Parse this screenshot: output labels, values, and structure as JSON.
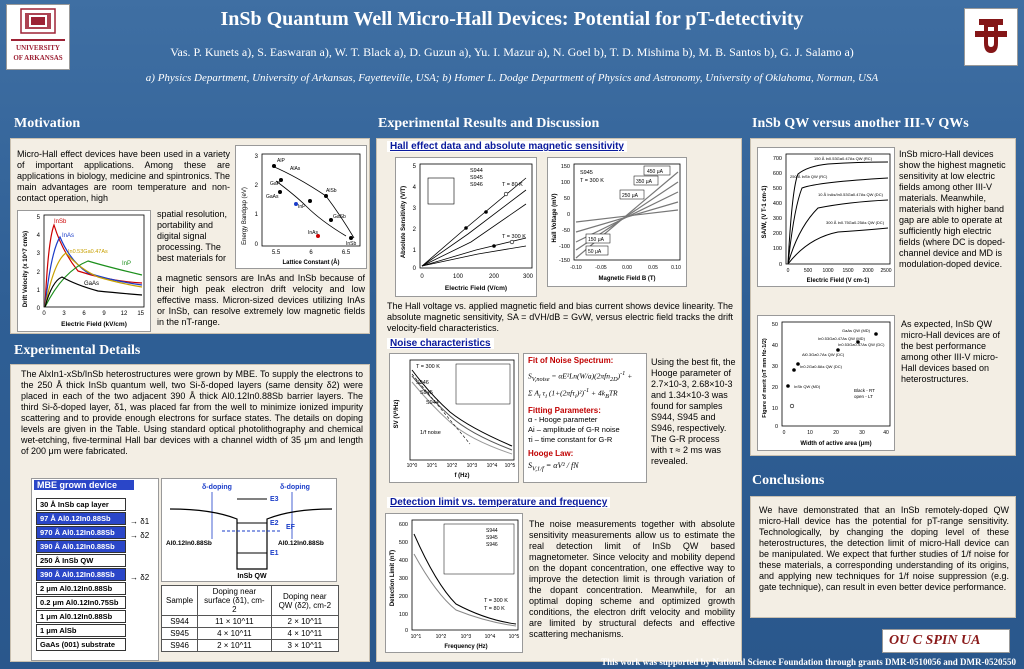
{
  "header": {
    "title": "InSb Quantum Well Micro-Hall Devices: Potential for pT-detectivity",
    "authors": "Vas. P. Kunets a), S. Easwaran a), W. T. Black a), D. Guzun a), Yu. I. Mazur a), N. Goel b), T. D. Mishima b), M. B. Santos b), G. J. Salamo a)",
    "affiliations": "a) Physics Department, University of Arkansas, Fayetteville, USA;   b) Homer L. Dodge Department of Physics and Astronomy, University of Oklahoma, Norman, USA",
    "left_logo_text": "UNIVERSITY OF ARKANSAS",
    "right_logo_text": "OU"
  },
  "motivation": {
    "title": "Motivation",
    "text_top": "Micro-Hall effect devices have been used in a variety of important applications. Among these are applications in biology, medicine and spintronics. The main advantages are room temperature and non-contact operation, high",
    "text_side": "spatial resolution, portability and digital signal processing. The best materials for",
    "text_bottom": "a magnetic sensors are InAs and InSb because of their high peak electron drift velocity and low effective mass. Micron-sized devices utilizing InAs or InSb, can resolve extremely low magnetic fields in the nT-range.",
    "fig1": {
      "xlabel": "Electric Field (kV/cm)",
      "ylabel": "Drift Velocity (x 10^7 cm/s)",
      "xticks": [
        "0",
        "3",
        "6",
        "9",
        "12",
        "15"
      ],
      "yticks": [
        "0",
        "1",
        "2",
        "3",
        "4",
        "5"
      ],
      "labels": [
        "InSb",
        "InAs",
        "In0.53Ga0.47As",
        "InP",
        "GaAs"
      ]
    },
    "fig2": {
      "xlabel": "Lattice Constant (Å)",
      "ylabel": "Energy Bandgap (eV)",
      "xticks": [
        "5.5",
        "6",
        "6.5"
      ],
      "yticks": [
        "0",
        "1",
        "2",
        "3"
      ],
      "labels": [
        "AlP",
        "AlAs",
        "GaP",
        "GaAs",
        "InP",
        "AlSb",
        "InAs",
        "GaSb",
        "InSb"
      ]
    }
  },
  "exp_details": {
    "title": "Experimental Details",
    "text": "The AlxIn1-xSb/InSb heterostructures were grown by MBE. To supply the electrons to the 250 Å thick InSb quantum well, two Si-δ-doped layers (same density δ2) were placed in each of the two adjacent 390 Å thick Al0.12In0.88Sb barrier layers. The third Si-δ-doped layer, δ1, was placed far from the well to minimize ionized impurity scattering and to provide enough electrons for surface states. The details on doping levels are given in the Table. Using standard optical photolithography and chemical wet-etching, five-terminal Hall bar devices with a channel width of 35 μm and length of 200 μm were fabricated.",
    "mbe_title": "MBE grown device",
    "layers": [
      {
        "label": "30 Å InSb cap layer",
        "blue": false
      },
      {
        "label": "97 Å Al0.12In0.88Sb",
        "blue": true
      },
      {
        "label": "970 Å Al0.12In0.88Sb",
        "blue": true
      },
      {
        "label": "390 Å Al0.12In0.88Sb",
        "blue": true
      },
      {
        "label": "250 Å InSb QW",
        "blue": false
      },
      {
        "label": "390 Å Al0.12In0.88Sb",
        "blue": true
      },
      {
        "label": "2 μm Al0.12In0.88Sb",
        "blue": false
      },
      {
        "label": "0.2 μm Al0.12In0.75Sb",
        "blue": false
      },
      {
        "label": "1 μm Al0.12In0.88Sb",
        "blue": false
      },
      {
        "label": "1 μm AlSb",
        "blue": false
      },
      {
        "label": "GaAs (001) substrate",
        "blue": false
      }
    ],
    "deltas": [
      "δ1",
      "δ2",
      "δ2"
    ],
    "band": {
      "doping_left": "δ-doping",
      "doping_right": "δ-doping",
      "e3": "E3",
      "e2": "E2",
      "ef": "EF",
      "e1": "E1",
      "left_mat": "Al0.12In0.88Sb",
      "right_mat": "Al0.12In0.88Sb",
      "qw": "InSb QW"
    },
    "table": {
      "headers": [
        "Sample",
        "Doping near surface (δ1), cm-2",
        "Doping near QW (δ2), cm-2"
      ],
      "rows": [
        [
          "S944",
          "11 × 10^11",
          "2 × 10^11"
        ],
        [
          "S945",
          "4 × 10^11",
          "4 × 10^11"
        ],
        [
          "S946",
          "2 × 10^11",
          "3 × 10^11"
        ]
      ]
    }
  },
  "results": {
    "title": "Experimental Results and Discussion",
    "hall_title": "Hall effect data and absolute magnetic sensitivity",
    "hall_fig1": {
      "xlabel": "Electric Field (V/cm)",
      "ylabel": "Absolute Sensitivity (V/T)",
      "xticks": [
        "0",
        "100",
        "200",
        "300"
      ],
      "yticks": [
        "0",
        "1",
        "2",
        "3",
        "4",
        "5"
      ],
      "legend": [
        "S944",
        "S945",
        "S946"
      ],
      "notes": [
        "T = 80 K",
        "T = 300 K"
      ]
    },
    "hall_fig2": {
      "xlabel": "Magnetic Field B (T)",
      "ylabel": "Hall Voltage (mV)",
      "xticks": [
        "-0.10",
        "-0.05",
        "0.00",
        "0.05",
        "0.10"
      ],
      "yticks": [
        "150",
        "100",
        "50",
        "0",
        "-50",
        "-100",
        "-150"
      ],
      "notes": [
        "S945",
        "T = 300 K"
      ],
      "currents": [
        "450 μA",
        "350 μA",
        "250 μA",
        "150 μA",
        "50 μA"
      ]
    },
    "hall_caption": "The Hall voltage vs. applied magnetic field and bias current shows device linearity. The absolute magnetic sensitivity, SA = dVH/dB = GvW, versus electric field tracks the drift velocity-field characteristics.",
    "noise_title": "Noise characteristics",
    "noise_fig": {
      "xlabel": "f (Hz)",
      "ylabel": "SV (V²/Hz)",
      "notes": [
        "T = 300 K",
        "S946",
        "S945",
        "S944",
        "1/f noise"
      ],
      "xticks": [
        "10^0",
        "10^1",
        "10^2",
        "10^3",
        "10^4",
        "10^5"
      ]
    },
    "fit_title": "Fit of Noise Spectrum:",
    "fitting_params": "Fitting Parameters:",
    "param_list": [
      "α - Hooge parameter",
      "Ai – amplitude of G-R noise",
      "τi – time constant for G-R"
    ],
    "hooge_law": "Hooge Law:",
    "noise_side": "Using the best fit, the Hooge parameter of 2.7×10-3, 2.68×10-3 and 1.34×10-3 was found for samples S944, S945 and S946, respectively. The G-R process with τ ≈ 2 ms was revealed.",
    "detect_title": "Detection limit vs. temperature and frequency",
    "detect_fig": {
      "xlabel": "Frequency (Hz)",
      "ylabel": "Detection Limit (nT)",
      "yticks": [
        "600",
        "500",
        "400",
        "300",
        "200",
        "100",
        "0"
      ],
      "xticks": [
        "10^1",
        "10^2",
        "10^3",
        "10^4",
        "10^5"
      ],
      "notes": [
        "T = 300 K",
        "T = 80 K"
      ],
      "legend": [
        "S944",
        "S945",
        "S946"
      ]
    },
    "detect_text": "The noise measurements together with absolute sensitivity measurements allow us to estimate the real detection limit of InSb QW based magnetometer. Since velocity and mobility depend on the dopant concentration, one effective way to improve the detection limit is through variation of the dopant concentration. Meanwhile, for an optimal doping scheme and optimized growth conditions, the electron drift velocity and mobility are limited by structural defects and effective scattering mechanisms."
  },
  "versus": {
    "title": "InSb QW versus another III-V QWs",
    "fig1": {
      "xlabel": "Electric Field (V cm-1)",
      "ylabel": "SA/W, (V T-1 cm-1)",
      "xticks": [
        "0",
        "500",
        "1000",
        "1500",
        "2000",
        "2500"
      ],
      "yticks": [
        "0",
        "100",
        "200",
        "300",
        "400",
        "500",
        "600",
        "700"
      ],
      "labels": [
        "150 Å In0.53Ga0.47As QW (RC)",
        "250 Å InSb QW (RC)",
        "10 Å InAs/In0.53Ga0.47As QW (DC)",
        "300 Å In0.75Ga0.25As QW (DC)"
      ]
    },
    "text1": "InSb micro-Hall devices show the highest magnetic sensitivity at low electric fields among other III-V materials. Meanwhile, materials with higher band gap are able to operate at sufficiently high electric fields (where DC is doped-channel device and MD is modulation-doped device.",
    "fig2": {
      "xlabel": "Width of active area (μm)",
      "ylabel": "Figure of merit (nT mm Hz-1/2)",
      "xticks": [
        "0",
        "10",
        "20",
        "30",
        "40"
      ],
      "yticks": [
        "0",
        "10",
        "20",
        "30",
        "40",
        "50"
      ],
      "labels": [
        "GaAs QW (MD)",
        "In0.53Ga0.47As QW (MD)",
        "In0.53Ga0.47As QW (DC)",
        "Al0.3Ga0.7As QW (DC)",
        "In0.2Ga0.8As QW (DC)",
        "InSb QW (MD)",
        "Black - RT",
        "open - LT"
      ]
    },
    "text2": "As expected, InSb QW micro-Hall devices are of the best performance among other III-V micro-Hall devices based on heterostructures."
  },
  "conclusions": {
    "title": "Conclusions",
    "text": "We have demonstrated that an InSb remotely-doped QW micro-Hall device has the potential for pT-range sensitivity. Technologically, by changing the doping level of these heterostructures, the detection limit of micro-Hall device can be manipulated. We expect that further studies of 1/f noise for these materials, a corresponding understanding of its origins, and applying new techniques for 1/f noise suppression (e.g. gate technique), can result in even better device performance.",
    "logo": "OU C SPIN UA"
  },
  "footer": {
    "text": "This work was supported by National Science Foundation through grants DMR-0510056 and DMR-0520550"
  },
  "colors": {
    "background": "#2f5f95",
    "panel": "#f3eee4",
    "blue_title": "#0a1a9c",
    "red": "#c00000",
    "layer_blue": "#2a46c8"
  }
}
